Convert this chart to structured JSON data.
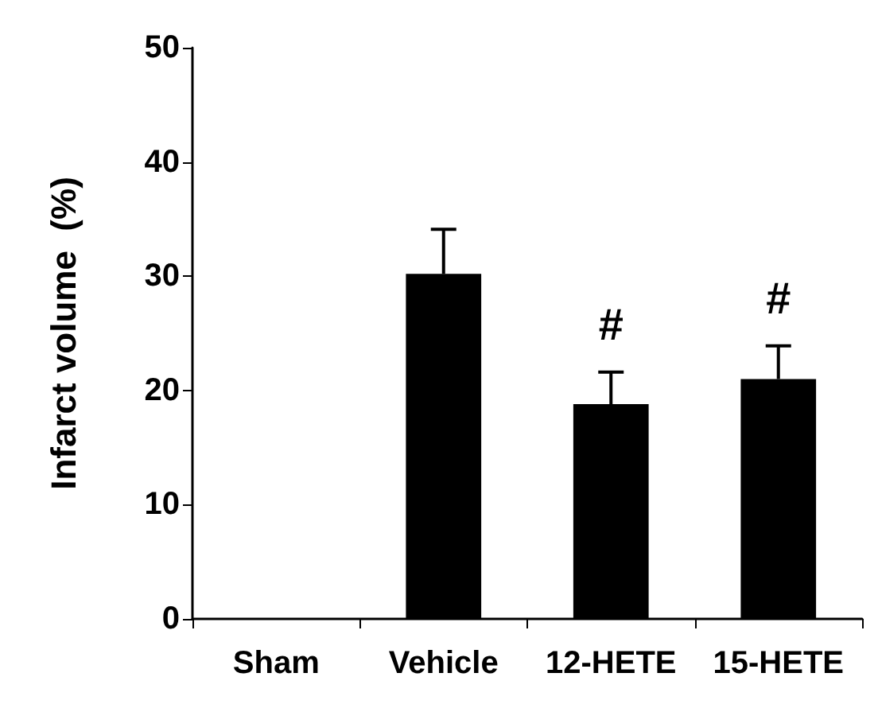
{
  "chart_data": {
    "type": "bar",
    "ylabel": "Infarct volume  (%)",
    "categories": [
      "Sham",
      "Vehicle",
      "12-HETE",
      "15-HETE"
    ],
    "values": [
      0,
      30.2,
      18.8,
      21.0
    ],
    "color": "#000000",
    "errors": [
      null,
      [
        30.2,
        34.1
      ],
      [
        18.8,
        21.6
      ],
      [
        21.0,
        23.9
      ]
    ],
    "ylim": [
      0,
      50
    ],
    "yticks": [
      0,
      10,
      20,
      30,
      40,
      50
    ],
    "grid": false,
    "annotations": [
      "#",
      "#"
    ]
  }
}
